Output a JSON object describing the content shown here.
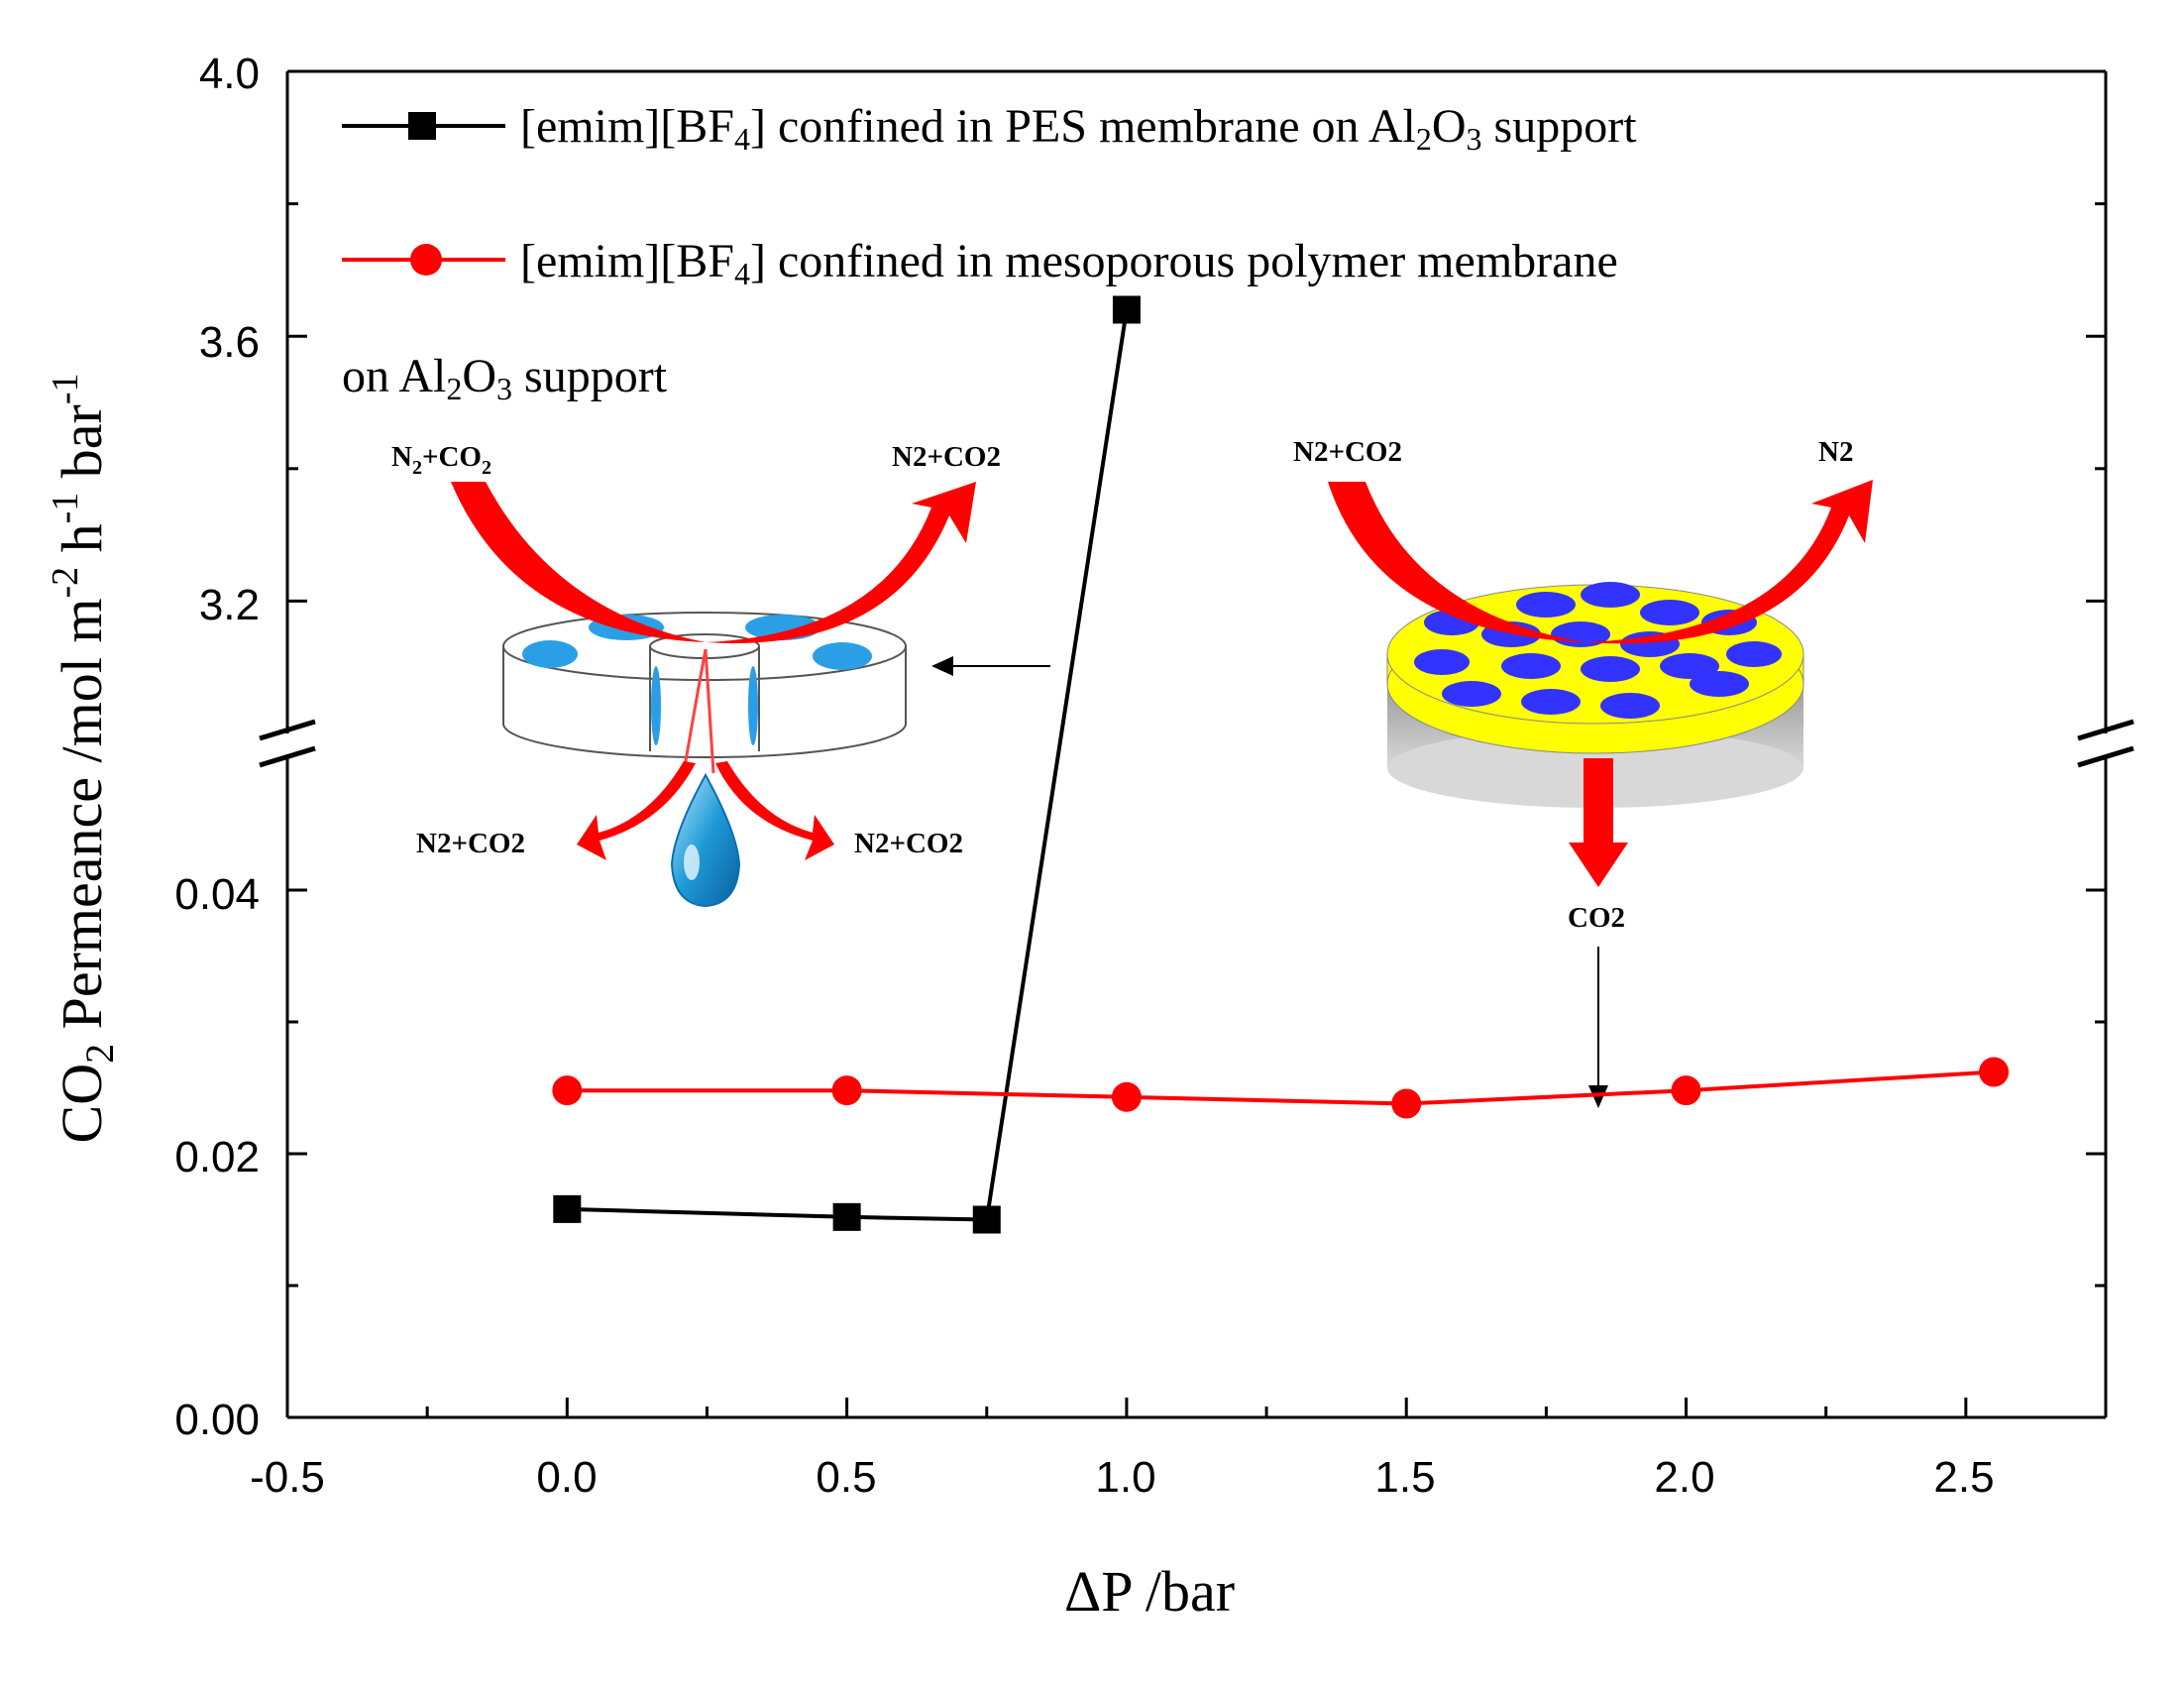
{
  "chart_data": {
    "type": "line",
    "xlabel": "ΔP /bar",
    "ylabel": "CO2 Permeance /mol m-2 h-1 bar-1",
    "xlim": [
      -0.5,
      2.75
    ],
    "ylim_lower": [
      0.0,
      0.05
    ],
    "ylim_upper": [
      3.0,
      4.0
    ],
    "y_axis_break": true,
    "x_ticks": [
      "-0.5",
      "0.0",
      "0.5",
      "1.0",
      "1.5",
      "2.0",
      "2.5"
    ],
    "y_ticks_lower": [
      "0.00",
      "0.02",
      "0.04"
    ],
    "y_ticks_upper": [
      "3.2",
      "3.6",
      "4.0"
    ],
    "grid": false,
    "legend_placement": "top-left",
    "series": [
      {
        "name": "[emim][BF4] confined in PES membrane on Al2O3 support",
        "marker": "square",
        "color": "#000000",
        "x": [
          0.0,
          0.5,
          0.75,
          1.0
        ],
        "y": [
          0.0158,
          0.0152,
          0.015,
          3.64
        ]
      },
      {
        "name": "[emim][BF4] confined in mesoporous polymer membrane on Al2O3 support",
        "marker": "circle",
        "color": "#ff0000",
        "x": [
          0.0,
          0.5,
          1.0,
          1.5,
          2.0,
          2.55
        ],
        "y": [
          0.0248,
          0.0248,
          0.0243,
          0.0238,
          0.0248,
          0.0262
        ]
      }
    ],
    "legend": {
      "line1": {
        "pre": "[emim][BF",
        "sub": "4",
        "mid": "] confined in PES membrane on Al",
        "sub2": "2",
        "mid2": "O",
        "sub3": "3",
        "post": " support"
      },
      "line2": {
        "pre": "[emim][BF",
        "sub": "4",
        "post": "] confined in mesoporous polymer membrane"
      },
      "line3": {
        "pre": "on Al",
        "sub": "2",
        "mid": "O",
        "sub2": "3",
        "post": " support"
      }
    },
    "axis_title_parts": {
      "y_co": "CO",
      "y_sub": "2",
      "y_perm": " Permeance /mol m",
      "y_e1": "-2",
      "y_h": " h",
      "y_e2": "-1",
      "y_bar": " bar",
      "y_e3": "-1",
      "x": "ΔP /bar"
    },
    "annotations": {
      "left_inset": {
        "in_n": "N",
        "in_n_sub": "2",
        "in_plus": "+CO",
        "in_co_sub": "2",
        "out_label_a": "N2+CO2",
        "down_left": "N2+CO2",
        "down_right": "N2+CO2"
      },
      "right_inset": {
        "in_label": "N2+CO2",
        "out_label": "N2",
        "down_label": "CO2"
      }
    },
    "colors": {
      "black_series": "#000000",
      "red_series": "#ff0000",
      "droplet": "#1e9ad6",
      "pore_blue_left": "#2b9fe6",
      "pore_blue_right": "#3333ff",
      "membrane_yellow": "#ffff00",
      "support_gray": "#a0a0a0",
      "arrow_red": "#ff0000"
    }
  }
}
